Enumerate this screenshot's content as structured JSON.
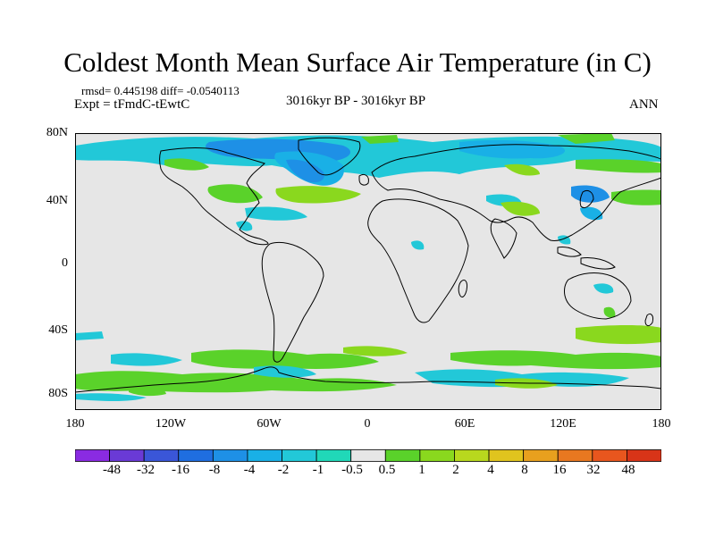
{
  "title": "Coldest Month Mean Surface Air Temperature (in C)",
  "stats": "rmsd= 0.445198  diff= -0.0540113",
  "experiment": "Expt = tFmdC-tEwtC",
  "period": "3016kyr BP - 3016kyr BP",
  "season": "ANN",
  "y_axis_labels": [
    "80N",
    "40N",
    "0",
    "40S",
    "80S"
  ],
  "x_axis_labels": [
    "180",
    "120W",
    "60W",
    "0",
    "60E",
    "120E",
    "180"
  ],
  "colorbar": {
    "labels": [
      "-48",
      "-32",
      "-16",
      "-8",
      "-4",
      "-2",
      "-1",
      "-0.5",
      "0.5",
      "1",
      "2",
      "4",
      "8",
      "16",
      "32",
      "48"
    ],
    "colors": [
      "#8a2be2",
      "#6a3ad6",
      "#3a56d8",
      "#1f6ee0",
      "#1e90e6",
      "#19b0e6",
      "#22c8d8",
      "#20d8b8",
      "#e6e6e6",
      "#5ad22a",
      "#8ad81e",
      "#b8d81e",
      "#e0c41e",
      "#e8a01e",
      "#e87820",
      "#e8561e",
      "#d83418"
    ]
  },
  "colors": {
    "ocean_neutral": "#e6e6e6",
    "coast": "#000000"
  }
}
